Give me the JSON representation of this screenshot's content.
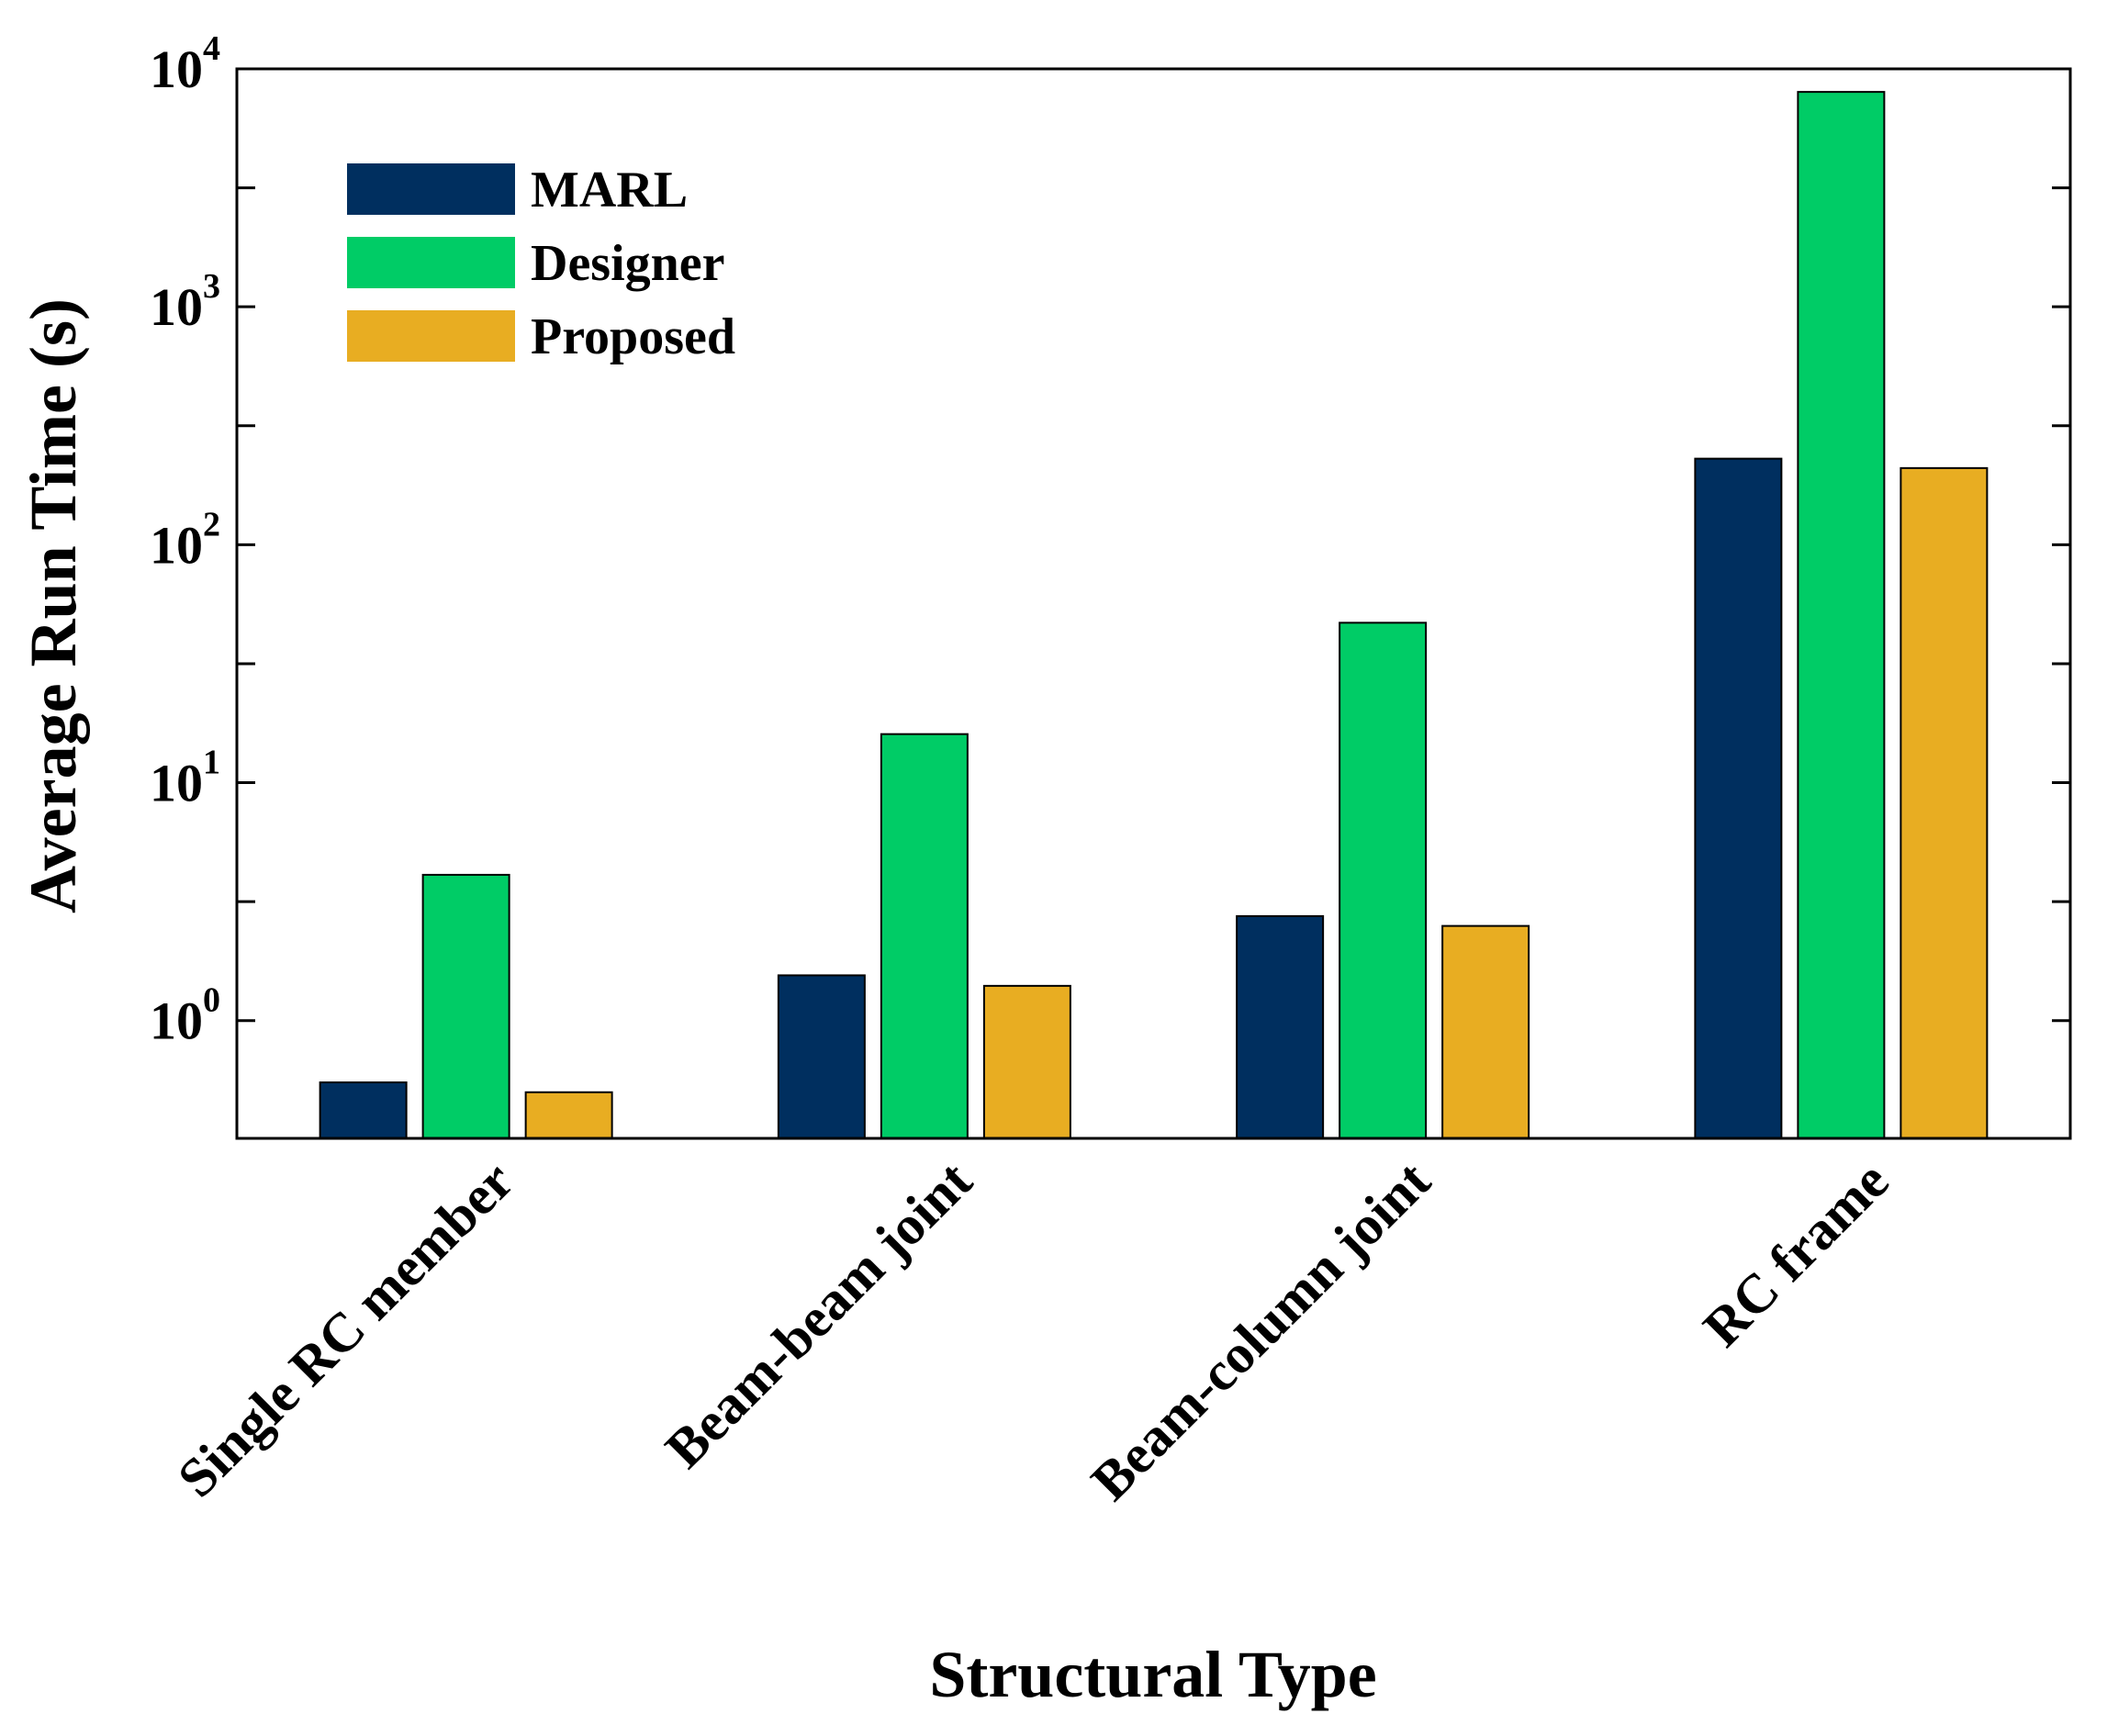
{
  "chart_data": {
    "type": "bar",
    "scale": "log",
    "xlabel": "Structural Type",
    "ylabel": "Average Run Time (s)",
    "categories": [
      "Single RC member",
      "Beam-beam joint",
      "Beam-column joint",
      "RC frame"
    ],
    "series": [
      {
        "name": "MARL",
        "color": "#002f5f",
        "values": [
          0.55,
          1.55,
          2.75,
          230
        ]
      },
      {
        "name": "Designer",
        "color": "#00cc66",
        "values": [
          4.1,
          16,
          47,
          8000
        ]
      },
      {
        "name": "Proposed",
        "color": "#e8ad22",
        "values": [
          0.5,
          1.4,
          2.5,
          210
        ]
      }
    ],
    "ylim": [
      0.32,
      10000
    ],
    "yticks": [
      {
        "value": 1,
        "base": "10",
        "exp": "0"
      },
      {
        "value": 10,
        "base": "10",
        "exp": "1"
      },
      {
        "value": 100,
        "base": "10",
        "exp": "2"
      },
      {
        "value": 1000,
        "base": "10",
        "exp": "3"
      },
      {
        "value": 10000,
        "base": "10",
        "exp": "4"
      }
    ],
    "legend_position": "top-left"
  }
}
